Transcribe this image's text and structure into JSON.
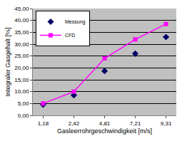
{
  "chart_data": {
    "type": "line",
    "x_label": "Gasleerrohrgeschwindigkeit [m/s]",
    "y_label": "Integraler Gasgehalt [%]",
    "categories": [
      "1,18",
      "2,42",
      "4,81",
      "7,21",
      "9,31"
    ],
    "series": [
      {
        "name": "Messung",
        "type": "scatter",
        "color": "#000066",
        "marker": "diamond",
        "values": [
          4.5,
          8.5,
          18.7,
          26.0,
          33.0
        ]
      },
      {
        "name": "CFD",
        "type": "line",
        "color": "#ff00ff",
        "marker": "square",
        "line_style": "solid",
        "values": [
          5.0,
          10.0,
          24.0,
          32.0,
          38.5
        ]
      }
    ],
    "ylim": [
      0,
      45
    ],
    "yticks": [
      {
        "value": 0,
        "label": "0,00"
      },
      {
        "value": 5,
        "label": "5,00"
      },
      {
        "value": 10,
        "label": "10,00"
      },
      {
        "value": 15,
        "label": "15,00"
      },
      {
        "value": 20,
        "label": "20,00"
      },
      {
        "value": 25,
        "label": "25,00"
      },
      {
        "value": 30,
        "label": "30,00"
      },
      {
        "value": 35,
        "label": "35,00"
      },
      {
        "value": 40,
        "label": "40,00"
      },
      {
        "value": 45,
        "label": "45,00"
      }
    ],
    "grid": true,
    "legend": "upper left"
  }
}
